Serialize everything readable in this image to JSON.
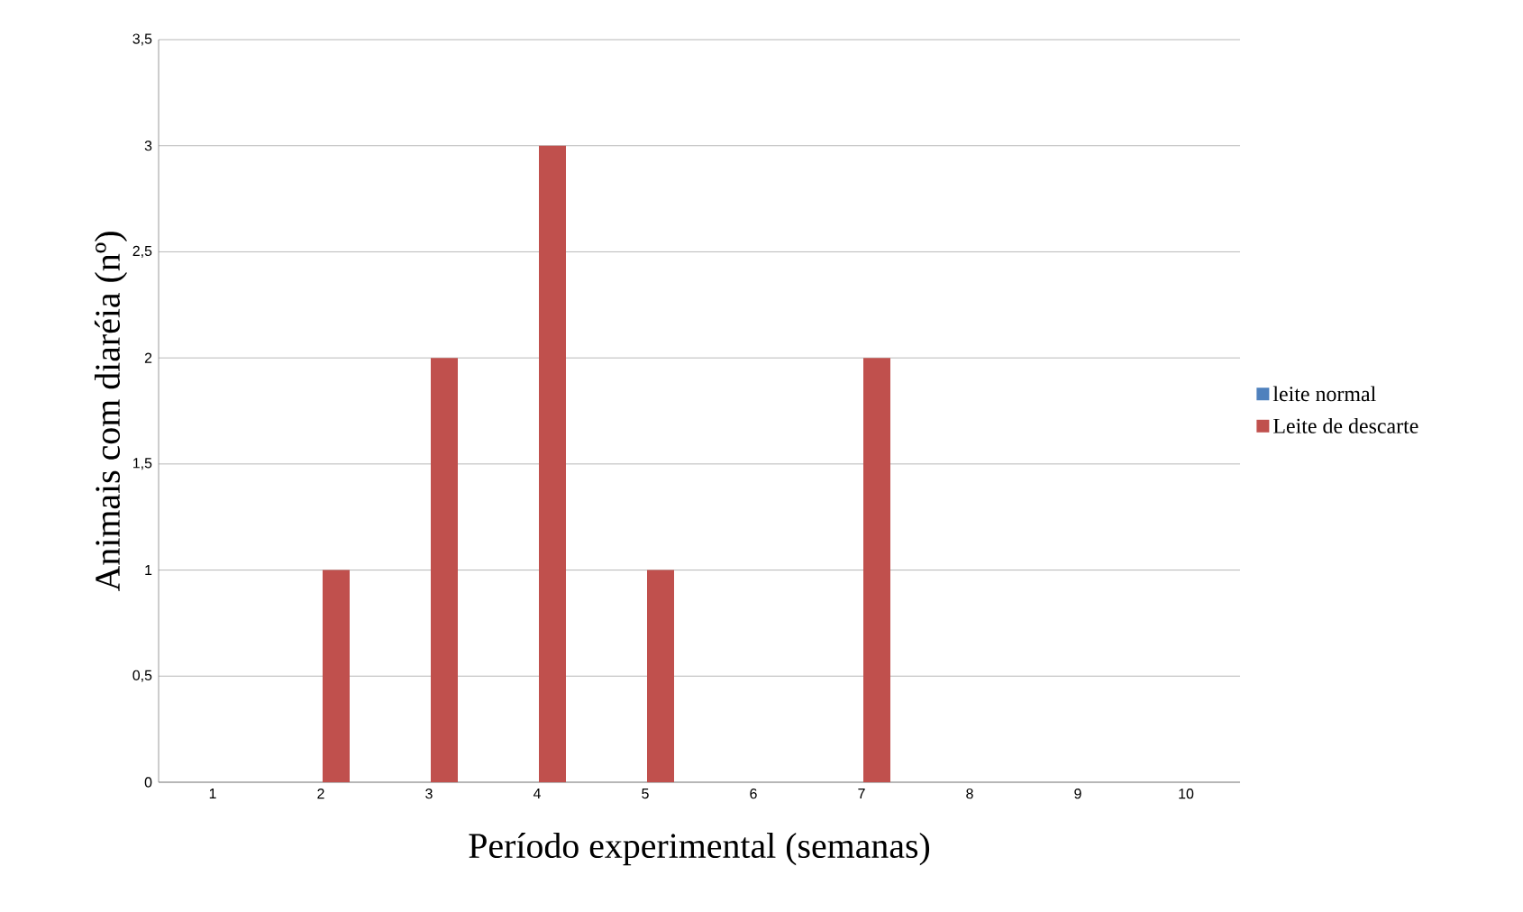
{
  "chart_data": {
    "type": "bar",
    "xlabel": "Período experimental (semanas)",
    "ylabel": "Animais com diaréia (nº)",
    "categories": [
      "1",
      "2",
      "3",
      "4",
      "5",
      "6",
      "7",
      "8",
      "9",
      "10"
    ],
    "series": [
      {
        "name": "leite normal",
        "color": "#4f81bd",
        "values": [
          0,
          0,
          0,
          0,
          0,
          0,
          0,
          0,
          0,
          0
        ]
      },
      {
        "name": "Leite de descarte",
        "color": "#c0504d",
        "values": [
          0,
          1,
          2,
          3,
          1,
          0,
          2,
          0,
          0,
          0
        ]
      }
    ],
    "ylim": [
      0,
      3.5
    ],
    "yticks": [
      0,
      {
        "value": 0.5,
        "label": "0,5"
      },
      1,
      {
        "value": 1.5,
        "label": "1,5"
      },
      2,
      {
        "value": 2.5,
        "label": "2,5"
      },
      3,
      {
        "value": 3.5,
        "label": "3,5"
      }
    ],
    "grid": "y",
    "legend": "right"
  }
}
